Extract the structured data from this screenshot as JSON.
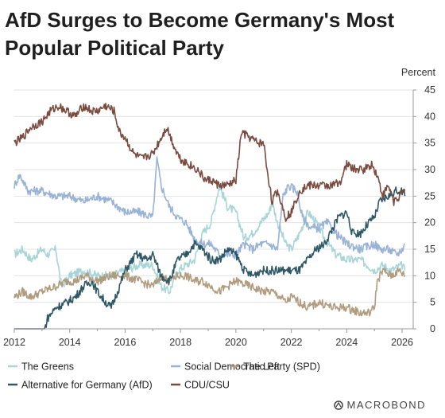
{
  "title": "AfD Surges to Become Germany's Most Popular Political Party",
  "brand": "MACROBOND",
  "chart_data": {
    "type": "line",
    "ylabel": "Percent",
    "ylim": [
      0,
      45
    ],
    "xlim": [
      2012,
      2026.4
    ],
    "yticks": [
      0,
      5,
      10,
      15,
      20,
      25,
      30,
      35,
      40,
      45
    ],
    "xticks": [
      2012,
      2014,
      2016,
      2018,
      2020,
      2022,
      2024,
      2026
    ],
    "grid": true,
    "legend_position": "bottom",
    "series": [
      {
        "name": "The Greens",
        "color": "#a8d5d8",
        "points": [
          [
            2012.0,
            14
          ],
          [
            2012.3,
            15
          ],
          [
            2012.6,
            13
          ],
          [
            2013.0,
            15
          ],
          [
            2013.2,
            14
          ],
          [
            2013.5,
            15
          ],
          [
            2013.7,
            8
          ],
          [
            2014.0,
            10
          ],
          [
            2014.5,
            11
          ],
          [
            2015.0,
            10
          ],
          [
            2015.5,
            10
          ],
          [
            2016.0,
            11
          ],
          [
            2016.5,
            12
          ],
          [
            2017.0,
            12
          ],
          [
            2017.3,
            8
          ],
          [
            2017.6,
            7
          ],
          [
            2017.9,
            11
          ],
          [
            2018.2,
            12
          ],
          [
            2018.5,
            13
          ],
          [
            2018.8,
            18
          ],
          [
            2019.1,
            20
          ],
          [
            2019.4,
            27
          ],
          [
            2019.7,
            23
          ],
          [
            2020.0,
            22
          ],
          [
            2020.3,
            17
          ],
          [
            2020.6,
            18
          ],
          [
            2020.9,
            20
          ],
          [
            2021.2,
            22
          ],
          [
            2021.3,
            24
          ],
          [
            2021.5,
            20
          ],
          [
            2021.8,
            16
          ],
          [
            2022.0,
            15
          ],
          [
            2022.3,
            18
          ],
          [
            2022.6,
            22
          ],
          [
            2022.9,
            20
          ],
          [
            2023.2,
            17
          ],
          [
            2023.6,
            14
          ],
          [
            2024.0,
            13
          ],
          [
            2024.5,
            13
          ],
          [
            2025.0,
            11
          ],
          [
            2025.3,
            12
          ],
          [
            2025.6,
            11
          ],
          [
            2026.0,
            12
          ],
          [
            2026.1,
            11
          ]
        ]
      },
      {
        "name": "Social Democratic Party (SPD)",
        "color": "#98b3d6",
        "points": [
          [
            2012.0,
            27
          ],
          [
            2012.2,
            29
          ],
          [
            2012.5,
            26
          ],
          [
            2013.0,
            26
          ],
          [
            2013.5,
            25
          ],
          [
            2014.0,
            25
          ],
          [
            2014.5,
            24
          ],
          [
            2015.0,
            25
          ],
          [
            2015.5,
            24
          ],
          [
            2016.0,
            22
          ],
          [
            2016.5,
            22
          ],
          [
            2017.0,
            21
          ],
          [
            2017.15,
            32
          ],
          [
            2017.3,
            27
          ],
          [
            2017.6,
            23
          ],
          [
            2017.9,
            21
          ],
          [
            2018.2,
            20
          ],
          [
            2018.5,
            17
          ],
          [
            2018.8,
            16
          ],
          [
            2019.1,
            16
          ],
          [
            2019.4,
            14
          ],
          [
            2019.7,
            14
          ],
          [
            2020.0,
            14
          ],
          [
            2020.3,
            16
          ],
          [
            2020.6,
            15
          ],
          [
            2020.9,
            16
          ],
          [
            2021.2,
            16
          ],
          [
            2021.5,
            15
          ],
          [
            2021.7,
            25
          ],
          [
            2021.9,
            27
          ],
          [
            2022.2,
            26
          ],
          [
            2022.4,
            21
          ],
          [
            2022.7,
            19
          ],
          [
            2023.0,
            19
          ],
          [
            2023.3,
            20
          ],
          [
            2023.6,
            18
          ],
          [
            2024.0,
            16
          ],
          [
            2024.5,
            15
          ],
          [
            2025.0,
            16
          ],
          [
            2025.2,
            15
          ],
          [
            2025.5,
            15
          ],
          [
            2025.8,
            14
          ],
          [
            2026.0,
            15
          ],
          [
            2026.1,
            16
          ]
        ]
      },
      {
        "name": "The Left",
        "color": "#b09c7f",
        "points": [
          [
            2012.0,
            6
          ],
          [
            2012.3,
            7
          ],
          [
            2012.6,
            6
          ],
          [
            2013.0,
            7
          ],
          [
            2013.5,
            8
          ],
          [
            2013.9,
            9
          ],
          [
            2014.2,
            9
          ],
          [
            2014.6,
            10
          ],
          [
            2015.0,
            9
          ],
          [
            2015.5,
            10
          ],
          [
            2016.0,
            10
          ],
          [
            2016.5,
            9
          ],
          [
            2017.0,
            8
          ],
          [
            2017.3,
            10
          ],
          [
            2017.6,
            9
          ],
          [
            2017.9,
            10
          ],
          [
            2018.2,
            10
          ],
          [
            2018.5,
            9
          ],
          [
            2018.8,
            9
          ],
          [
            2019.1,
            8
          ],
          [
            2019.4,
            7
          ],
          [
            2019.7,
            8
          ],
          [
            2020.0,
            9
          ],
          [
            2020.5,
            8
          ],
          [
            2021.0,
            7
          ],
          [
            2021.3,
            7
          ],
          [
            2021.6,
            6
          ],
          [
            2021.8,
            5
          ],
          [
            2022.0,
            6
          ],
          [
            2022.3,
            5
          ],
          [
            2022.6,
            4
          ],
          [
            2023.0,
            5
          ],
          [
            2023.5,
            4
          ],
          [
            2024.0,
            4
          ],
          [
            2024.5,
            3
          ],
          [
            2024.8,
            3
          ],
          [
            2025.0,
            4
          ],
          [
            2025.1,
            9
          ],
          [
            2025.3,
            11
          ],
          [
            2025.6,
            10
          ],
          [
            2025.9,
            11
          ],
          [
            2026.1,
            10
          ]
        ]
      },
      {
        "name": "Alternative for Germany (AfD)",
        "color": "#2e5866",
        "points": [
          [
            2012.0,
            0
          ],
          [
            2013.1,
            0
          ],
          [
            2013.2,
            2
          ],
          [
            2013.5,
            4
          ],
          [
            2013.9,
            5
          ],
          [
            2014.2,
            6
          ],
          [
            2014.5,
            8
          ],
          [
            2014.8,
            9
          ],
          [
            2015.0,
            7
          ],
          [
            2015.3,
            5
          ],
          [
            2015.5,
            4
          ],
          [
            2015.8,
            8
          ],
          [
            2016.0,
            11
          ],
          [
            2016.4,
            14
          ],
          [
            2016.8,
            13
          ],
          [
            2017.0,
            14
          ],
          [
            2017.3,
            10
          ],
          [
            2017.6,
            9
          ],
          [
            2017.9,
            13
          ],
          [
            2018.2,
            14
          ],
          [
            2018.5,
            16
          ],
          [
            2018.8,
            15
          ],
          [
            2019.1,
            13
          ],
          [
            2019.4,
            13
          ],
          [
            2019.7,
            15
          ],
          [
            2020.0,
            14
          ],
          [
            2020.3,
            11
          ],
          [
            2020.6,
            10
          ],
          [
            2020.9,
            11
          ],
          [
            2021.2,
            11
          ],
          [
            2021.5,
            11
          ],
          [
            2021.8,
            11
          ],
          [
            2022.0,
            11
          ],
          [
            2022.3,
            11
          ],
          [
            2022.6,
            13
          ],
          [
            2022.9,
            15
          ],
          [
            2023.2,
            16
          ],
          [
            2023.4,
            18
          ],
          [
            2023.7,
            21
          ],
          [
            2024.0,
            22
          ],
          [
            2024.2,
            18
          ],
          [
            2024.5,
            18
          ],
          [
            2024.8,
            20
          ],
          [
            2025.0,
            21
          ],
          [
            2025.2,
            24
          ],
          [
            2025.5,
            25
          ],
          [
            2025.8,
            26
          ],
          [
            2026.0,
            26
          ],
          [
            2026.1,
            25
          ]
        ]
      },
      {
        "name": "CDU/CSU",
        "color": "#7a4b3e",
        "points": [
          [
            2012.0,
            35
          ],
          [
            2012.3,
            36
          ],
          [
            2012.6,
            38
          ],
          [
            2013.0,
            39
          ],
          [
            2013.3,
            41
          ],
          [
            2013.6,
            42
          ],
          [
            2013.9,
            41
          ],
          [
            2014.2,
            40
          ],
          [
            2014.5,
            42
          ],
          [
            2014.8,
            41
          ],
          [
            2015.0,
            41
          ],
          [
            2015.3,
            42
          ],
          [
            2015.6,
            41
          ],
          [
            2015.8,
            37
          ],
          [
            2016.0,
            36
          ],
          [
            2016.3,
            33
          ],
          [
            2016.6,
            32
          ],
          [
            2017.0,
            33
          ],
          [
            2017.2,
            35
          ],
          [
            2017.5,
            38
          ],
          [
            2017.8,
            34
          ],
          [
            2018.0,
            32
          ],
          [
            2018.3,
            31
          ],
          [
            2018.6,
            30
          ],
          [
            2018.9,
            28
          ],
          [
            2019.1,
            28
          ],
          [
            2019.4,
            27
          ],
          [
            2019.7,
            27
          ],
          [
            2020.0,
            28
          ],
          [
            2020.2,
            37
          ],
          [
            2020.5,
            36
          ],
          [
            2020.8,
            35
          ],
          [
            2021.0,
            35
          ],
          [
            2021.1,
            31
          ],
          [
            2021.3,
            24
          ],
          [
            2021.5,
            26
          ],
          [
            2021.8,
            21
          ],
          [
            2022.0,
            22
          ],
          [
            2022.3,
            26
          ],
          [
            2022.6,
            27
          ],
          [
            2022.9,
            27
          ],
          [
            2023.2,
            27
          ],
          [
            2023.5,
            27
          ],
          [
            2023.8,
            28
          ],
          [
            2024.0,
            31
          ],
          [
            2024.3,
            30
          ],
          [
            2024.6,
            30
          ],
          [
            2024.9,
            31
          ],
          [
            2025.1,
            29
          ],
          [
            2025.3,
            25
          ],
          [
            2025.5,
            27
          ],
          [
            2025.7,
            24
          ],
          [
            2025.9,
            25
          ],
          [
            2026.1,
            26
          ]
        ]
      }
    ]
  }
}
